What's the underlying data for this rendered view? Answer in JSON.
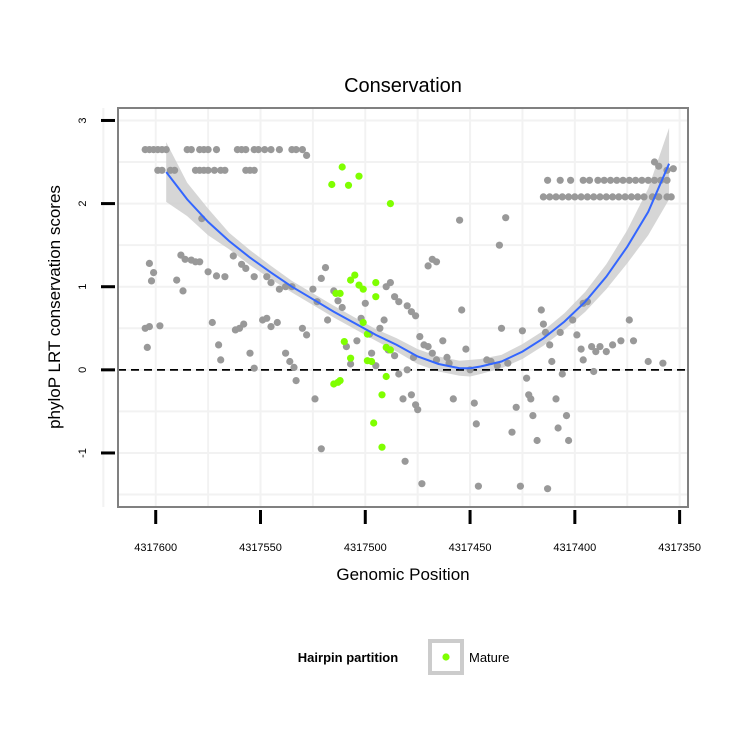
{
  "chart_data": {
    "type": "scatter",
    "title": "Conservation",
    "xlabel": "Genomic Position",
    "ylabel": "phyloP LRT conservation scores",
    "x_reversed": true,
    "xlim": [
      4317618,
      4317346
    ],
    "ylim": [
      -1.65,
      3.15
    ],
    "x_ticks": [
      4317600,
      4317550,
      4317500,
      4317450,
      4317400,
      4317350
    ],
    "x_tick_labels": [
      "4317600",
      "4317550",
      "4317500",
      "4317450",
      "4317400",
      "4317350"
    ],
    "y_ticks": [
      -1,
      0,
      1,
      2,
      3
    ],
    "y_tick_labels": [
      "-1",
      "0",
      "1",
      "2",
      "3"
    ],
    "reference_line": {
      "y": 0,
      "style": "dashed"
    },
    "colors": {
      "background": "#ffffff",
      "grid": "#f2f2f2",
      "frame": "#808080",
      "other_points": "#999999",
      "mature_points": "#7fff00",
      "smooth_line": "#3366ff",
      "confidence_band": "#cccccc",
      "ref_line": "#000000"
    },
    "legend": {
      "title": "Hairpin partition",
      "position": "bottom",
      "entries": [
        {
          "label": "Mature",
          "color": "#7fff00"
        }
      ]
    },
    "series": [
      {
        "name": "Other",
        "color": "#999999",
        "points": [
          [
            4317605,
            2.65
          ],
          [
            4317603,
            2.65
          ],
          [
            4317601,
            2.65
          ],
          [
            4317599,
            2.65
          ],
          [
            4317597,
            2.65
          ],
          [
            4317595,
            2.65
          ],
          [
            4317599,
            2.4
          ],
          [
            4317597,
            2.4
          ],
          [
            4317593,
            2.4
          ],
          [
            4317591,
            2.4
          ],
          [
            4317585,
            2.65
          ],
          [
            4317583,
            2.65
          ],
          [
            4317579,
            2.65
          ],
          [
            4317577,
            2.65
          ],
          [
            4317575,
            2.65
          ],
          [
            4317571,
            2.65
          ],
          [
            4317581,
            2.4
          ],
          [
            4317579,
            2.4
          ],
          [
            4317577,
            2.4
          ],
          [
            4317575,
            2.4
          ],
          [
            4317572,
            2.4
          ],
          [
            4317569,
            2.4
          ],
          [
            4317567,
            2.4
          ],
          [
            4317561,
            2.65
          ],
          [
            4317559,
            2.65
          ],
          [
            4317557,
            2.65
          ],
          [
            4317553,
            2.65
          ],
          [
            4317551,
            2.65
          ],
          [
            4317548,
            2.65
          ],
          [
            4317545,
            2.65
          ],
          [
            4317541,
            2.65
          ],
          [
            4317557,
            2.4
          ],
          [
            4317555,
            2.4
          ],
          [
            4317553,
            2.4
          ],
          [
            4317535,
            2.65
          ],
          [
            4317533,
            2.65
          ],
          [
            4317530,
            2.65
          ],
          [
            4317528,
            2.58
          ],
          [
            4317603,
            1.28
          ],
          [
            4317601,
            1.17
          ],
          [
            4317602,
            1.07
          ],
          [
            4317588,
            1.38
          ],
          [
            4317586,
            1.33
          ],
          [
            4317583,
            1.32
          ],
          [
            4317581,
            1.3
          ],
          [
            4317579,
            1.3
          ],
          [
            4317575,
            1.18
          ],
          [
            4317571,
            1.13
          ],
          [
            4317567,
            1.12
          ],
          [
            4317563,
            1.37
          ],
          [
            4317559,
            1.27
          ],
          [
            4317557,
            1.22
          ],
          [
            4317553,
            1.12
          ],
          [
            4317547,
            1.12
          ],
          [
            4317545,
            1.05
          ],
          [
            4317541,
            0.97
          ],
          [
            4317538,
            1.0
          ],
          [
            4317535,
            1.0
          ],
          [
            4317605,
            0.5
          ],
          [
            4317603,
            0.52
          ],
          [
            4317598,
            0.53
          ],
          [
            4317604,
            0.27
          ],
          [
            4317590,
            1.08
          ],
          [
            4317587,
            0.95
          ],
          [
            4317578,
            1.82
          ],
          [
            4317573,
            0.57
          ],
          [
            4317570,
            0.3
          ],
          [
            4317569,
            0.12
          ],
          [
            4317562,
            0.48
          ],
          [
            4317560,
            0.5
          ],
          [
            4317558,
            0.55
          ],
          [
            4317555,
            0.2
          ],
          [
            4317553,
            0.02
          ],
          [
            4317549,
            0.6
          ],
          [
            4317547,
            0.62
          ],
          [
            4317545,
            0.52
          ],
          [
            4317542,
            0.57
          ],
          [
            4317538,
            0.2
          ],
          [
            4317536,
            0.1
          ],
          [
            4317534,
            0.03
          ],
          [
            4317533,
            -0.13
          ],
          [
            4317530,
            0.5
          ],
          [
            4317528,
            0.42
          ],
          [
            4317525,
            0.97
          ],
          [
            4317523,
            0.82
          ],
          [
            4317521,
            1.1
          ],
          [
            4317519,
            1.23
          ],
          [
            4317518,
            0.6
          ],
          [
            4317515,
            0.95
          ],
          [
            4317513,
            0.83
          ],
          [
            4317511,
            0.75
          ],
          [
            4317509,
            0.28
          ],
          [
            4317507,
            0.07
          ],
          [
            4317504,
            0.35
          ],
          [
            4317502,
            0.62
          ],
          [
            4317500,
            0.8
          ],
          [
            4317498,
            0.43
          ],
          [
            4317497,
            0.2
          ],
          [
            4317495,
            0.05
          ],
          [
            4317493,
            0.5
          ],
          [
            4317491,
            0.6
          ],
          [
            4317490,
            1.0
          ],
          [
            4317488,
            1.05
          ],
          [
            4317489,
            0.24
          ],
          [
            4317486,
            0.17
          ],
          [
            4317484,
            -0.05
          ],
          [
            4317482,
            -0.35
          ],
          [
            4317480,
            0.0
          ],
          [
            4317478,
            -0.3
          ],
          [
            4317477,
            0.15
          ],
          [
            4317524,
            -0.35
          ],
          [
            4317521,
            -0.95
          ],
          [
            4317486,
            0.88
          ],
          [
            4317484,
            0.82
          ],
          [
            4317480,
            0.77
          ],
          [
            4317478,
            0.7
          ],
          [
            4317476,
            0.65
          ],
          [
            4317474,
            0.4
          ],
          [
            4317472,
            0.3
          ],
          [
            4317470,
            0.28
          ],
          [
            4317468,
            0.2
          ],
          [
            4317466,
            0.12
          ],
          [
            4317475,
            -0.48
          ],
          [
            4317481,
            -1.1
          ],
          [
            4317476,
            -0.42
          ],
          [
            4317473,
            -1.37
          ],
          [
            4317470,
            1.25
          ],
          [
            4317468,
            1.33
          ],
          [
            4317466,
            1.3
          ],
          [
            4317463,
            0.35
          ],
          [
            4317461,
            0.15
          ],
          [
            4317460,
            0.08
          ],
          [
            4317458,
            -0.35
          ],
          [
            4317455,
            1.8
          ],
          [
            4317454,
            0.72
          ],
          [
            4317452,
            0.25
          ],
          [
            4317450,
            0.0
          ],
          [
            4317448,
            -0.4
          ],
          [
            4317447,
            -0.65
          ],
          [
            4317446,
            -1.4
          ],
          [
            4317442,
            0.12
          ],
          [
            4317440,
            0.1
          ],
          [
            4317437,
            0.05
          ],
          [
            4317436,
            1.5
          ],
          [
            4317435,
            0.5
          ],
          [
            4317433,
            1.83
          ],
          [
            4317432,
            0.08
          ],
          [
            4317430,
            -0.75
          ],
          [
            4317428,
            -0.45
          ],
          [
            4317426,
            -1.4
          ],
          [
            4317425,
            0.47
          ],
          [
            4317423,
            -0.1
          ],
          [
            4317422,
            -0.3
          ],
          [
            4317421,
            -0.35
          ],
          [
            4317420,
            -0.55
          ],
          [
            4317418,
            -0.85
          ],
          [
            4317416,
            0.72
          ],
          [
            4317415,
            0.55
          ],
          [
            4317414,
            0.45
          ],
          [
            4317412,
            0.3
          ],
          [
            4317411,
            0.1
          ],
          [
            4317409,
            -0.35
          ],
          [
            4317407,
            0.45
          ],
          [
            4317406,
            -0.05
          ],
          [
            4317404,
            -0.55
          ],
          [
            4317403,
            -0.85
          ],
          [
            4317401,
            0.6
          ],
          [
            4317399,
            0.42
          ],
          [
            4317397,
            0.25
          ],
          [
            4317396,
            0.8
          ],
          [
            4317394,
            0.82
          ],
          [
            4317392,
            0.28
          ],
          [
            4317390,
            0.22
          ],
          [
            4317388,
            0.28
          ],
          [
            4317385,
            0.22
          ],
          [
            4317382,
            0.3
          ],
          [
            4317378,
            0.35
          ],
          [
            4317374,
            0.6
          ],
          [
            4317372,
            0.35
          ],
          [
            4317365,
            0.1
          ],
          [
            4317358,
            0.08
          ],
          [
            4317396,
            0.12
          ],
          [
            4317391,
            -0.02
          ],
          [
            4317408,
            -0.7
          ],
          [
            4317413,
            -1.43
          ],
          [
            4317413,
            2.28
          ],
          [
            4317407,
            2.28
          ],
          [
            4317402,
            2.28
          ],
          [
            4317396,
            2.28
          ],
          [
            4317393,
            2.28
          ],
          [
            4317389,
            2.28
          ],
          [
            4317386,
            2.28
          ],
          [
            4317383,
            2.28
          ],
          [
            4317380,
            2.28
          ],
          [
            4317377,
            2.28
          ],
          [
            4317374,
            2.28
          ],
          [
            4317371,
            2.28
          ],
          [
            4317368,
            2.28
          ],
          [
            4317365,
            2.28
          ],
          [
            4317362,
            2.28
          ],
          [
            4317359,
            2.28
          ],
          [
            4317356,
            2.28
          ],
          [
            4317353,
            2.42
          ],
          [
            4317415,
            2.08
          ],
          [
            4317412,
            2.08
          ],
          [
            4317409,
            2.08
          ],
          [
            4317406,
            2.08
          ],
          [
            4317403,
            2.08
          ],
          [
            4317400,
            2.08
          ],
          [
            4317397,
            2.08
          ],
          [
            4317394,
            2.08
          ],
          [
            4317391,
            2.08
          ],
          [
            4317388,
            2.08
          ],
          [
            4317385,
            2.08
          ],
          [
            4317382,
            2.08
          ],
          [
            4317379,
            2.08
          ],
          [
            4317376,
            2.08
          ],
          [
            4317373,
            2.08
          ],
          [
            4317370,
            2.08
          ],
          [
            4317367,
            2.08
          ],
          [
            4317363,
            2.08
          ],
          [
            4317360,
            2.08
          ],
          [
            4317356,
            2.08
          ],
          [
            4317354,
            2.08
          ],
          [
            4317362,
            2.5
          ],
          [
            4317360,
            2.45
          ],
          [
            4317356,
            2.4
          ]
        ]
      },
      {
        "name": "Mature",
        "color": "#7fff00",
        "points": [
          [
            4317516,
            2.23
          ],
          [
            4317511,
            2.44
          ],
          [
            4317508,
            2.22
          ],
          [
            4317503,
            2.33
          ],
          [
            4317488,
            2.0
          ],
          [
            4317505,
            1.14
          ],
          [
            4317507,
            1.08
          ],
          [
            4317503,
            1.02
          ],
          [
            4317501,
            0.97
          ],
          [
            4317495,
            1.05
          ],
          [
            4317514,
            0.92
          ],
          [
            4317512,
            0.92
          ],
          [
            4317495,
            0.88
          ],
          [
            4317501,
            0.57
          ],
          [
            4317499,
            0.43
          ],
          [
            4317510,
            0.34
          ],
          [
            4317507,
            0.14
          ],
          [
            4317499,
            0.11
          ],
          [
            4317497,
            0.1
          ],
          [
            4317490,
            0.27
          ],
          [
            4317488,
            0.24
          ],
          [
            4317512,
            -0.13
          ],
          [
            4317513,
            -0.15
          ],
          [
            4317515,
            -0.17
          ],
          [
            4317490,
            -0.08
          ],
          [
            4317492,
            -0.3
          ],
          [
            4317496,
            -0.64
          ],
          [
            4317492,
            -0.93
          ]
        ]
      }
    ],
    "smooth_fit": {
      "x": [
        4317595,
        4317585,
        4317575,
        4317565,
        4317555,
        4317545,
        4317535,
        4317525,
        4317515,
        4317505,
        4317495,
        4317485,
        4317475,
        4317465,
        4317455,
        4317450,
        4317445,
        4317435,
        4317425,
        4317415,
        4317405,
        4317395,
        4317385,
        4317375,
        4317365,
        4317355
      ],
      "y": [
        2.38,
        2.05,
        1.78,
        1.55,
        1.35,
        1.17,
        1.0,
        0.85,
        0.7,
        0.56,
        0.42,
        0.3,
        0.16,
        0.07,
        0.02,
        0.02,
        0.04,
        0.1,
        0.22,
        0.38,
        0.58,
        0.82,
        1.12,
        1.48,
        1.9,
        2.48
      ],
      "lower": [
        2.02,
        1.85,
        1.62,
        1.45,
        1.26,
        1.09,
        0.93,
        0.78,
        0.63,
        0.49,
        0.35,
        0.22,
        0.07,
        -0.02,
        -0.07,
        -0.08,
        -0.05,
        0.02,
        0.13,
        0.29,
        0.48,
        0.7,
        0.97,
        1.28,
        1.62,
        2.05
      ],
      "upper": [
        2.74,
        2.25,
        1.94,
        1.65,
        1.44,
        1.25,
        1.07,
        0.92,
        0.77,
        0.63,
        0.49,
        0.38,
        0.25,
        0.16,
        0.11,
        0.12,
        0.13,
        0.18,
        0.31,
        0.47,
        0.68,
        0.94,
        1.27,
        1.68,
        2.18,
        2.91
      ]
    }
  }
}
